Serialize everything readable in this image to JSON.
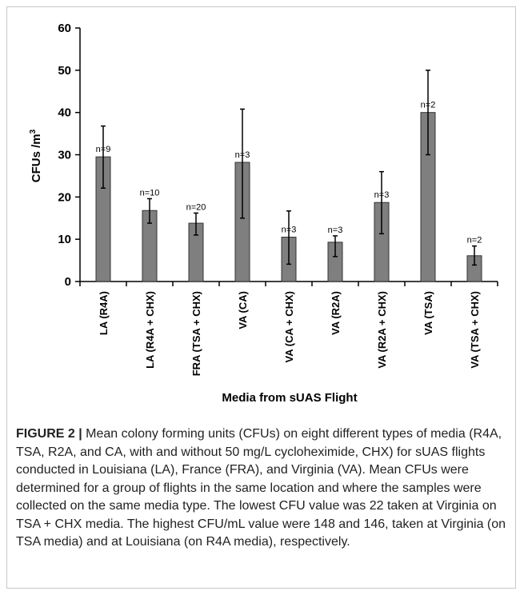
{
  "chart_data": {
    "type": "bar",
    "title": "",
    "xlabel": "Media from sUAS Flight",
    "ylabel": "CFUs /m",
    "ylabel_superscript": "3",
    "ylim": [
      0,
      60
    ],
    "yticks": [
      0,
      10,
      20,
      30,
      40,
      50,
      60
    ],
    "grid": false,
    "categories": [
      "LA (R4A)",
      "LA (R4A + CHX)",
      "FRA (TSA + CHX)",
      "VA (CA)",
      "VA (CA + CHX)",
      "VA (R2A)",
      "VA (R2A + CHX)",
      "VA (TSA)",
      "VA (TSA + CHX)"
    ],
    "values": [
      29.5,
      16.8,
      13.8,
      28.2,
      10.5,
      9.3,
      18.7,
      40.0,
      6.1
    ],
    "error_low": [
      22.1,
      13.8,
      11.0,
      15.0,
      4.1,
      5.9,
      11.3,
      30.0,
      3.9
    ],
    "error_high": [
      36.8,
      19.6,
      16.2,
      40.8,
      16.7,
      10.8,
      26.0,
      50.0,
      8.4
    ],
    "labels": [
      "n=9",
      "n=10",
      "n=20",
      "n=3",
      "n=3",
      "n=3",
      "n=3",
      "n=2",
      "n=2"
    ],
    "bar_color": "#7f7f7f",
    "bar_edge_color": "#333333"
  },
  "caption": {
    "label": "FIGURE 2 |",
    "text": " Mean colony forming units (CFUs) on eight different types of media (R4A, TSA, R2A, and CA, with and without 50 mg/L cycloheximide, CHX) for sUAS flights conducted in Louisiana (LA), France (FRA), and Virginia (VA). Mean CFUs were determined for a group of flights in the same location and where the samples were collected on the same media type. The lowest CFU value was 22 taken at Virginia on TSA + CHX media. The highest CFU/mL value were 148 and 146, taken at Virginia (on TSA media) and at Louisiana (on R4A media), respectively."
  }
}
